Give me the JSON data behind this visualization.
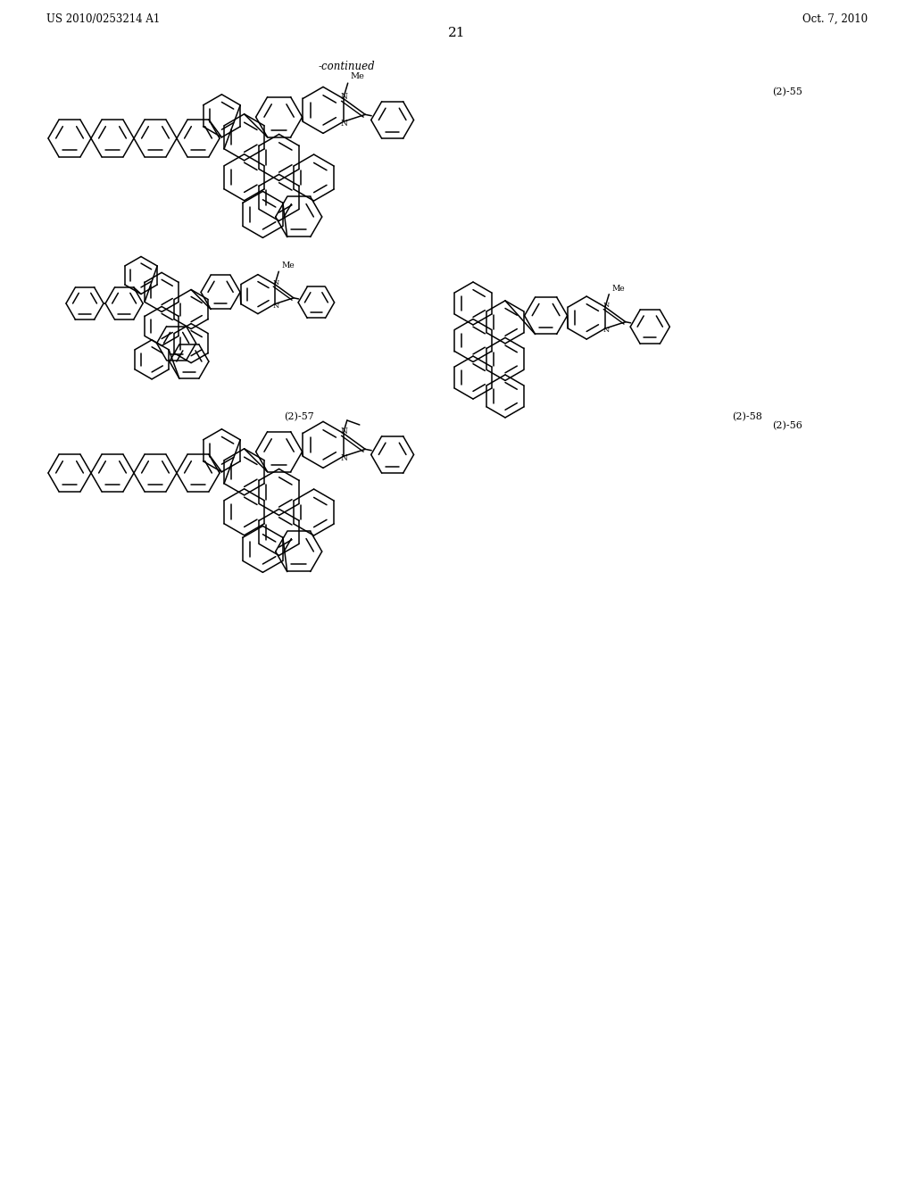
{
  "page_label_left": "US 2010/0253214 A1",
  "page_label_right": "Oct. 7, 2010",
  "page_number": "21",
  "continued_text": "-continued",
  "compound_labels": [
    "(2)-55",
    "(2)-56",
    "(2)-57",
    "(2)-58"
  ],
  "background_color": "#ffffff",
  "line_color": "#000000",
  "lw": 1.1,
  "r_small": 22,
  "r_large": 26
}
